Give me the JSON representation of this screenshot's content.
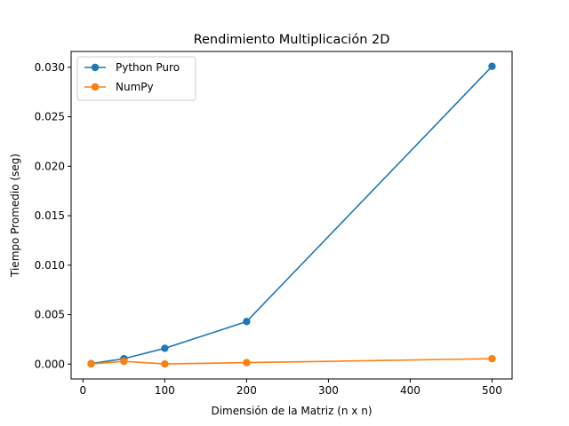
{
  "chart_data": {
    "type": "line",
    "title": "Rendimiento Multiplicación 2D",
    "xlabel": "Dimensión de la Matriz (n x n)",
    "ylabel": "Tiempo Promedio (seg)",
    "x": [
      10,
      50,
      100,
      200,
      500
    ],
    "series": [
      {
        "name": "Python Puro",
        "color": "#1f77b4",
        "values": [
          5e-05,
          0.00055,
          0.0016,
          0.0043,
          0.0301
        ]
      },
      {
        "name": "NumPy",
        "color": "#ff7f0e",
        "values": [
          2e-05,
          0.00028,
          2e-05,
          0.00015,
          0.00055
        ]
      }
    ],
    "xlim": [
      -14.5,
      524.5
    ],
    "ylim": [
      -0.0015,
      0.0316
    ],
    "xticks": [
      0,
      100,
      200,
      300,
      400,
      500
    ],
    "xtick_labels": [
      "0",
      "100",
      "200",
      "300",
      "400",
      "500"
    ],
    "yticks": [
      0.0,
      0.005,
      0.01,
      0.015,
      0.02,
      0.025,
      0.03
    ],
    "ytick_labels": [
      "0.000",
      "0.005",
      "0.010",
      "0.015",
      "0.020",
      "0.025",
      "0.030"
    ],
    "grid": false,
    "legend_position": "top-left"
  }
}
